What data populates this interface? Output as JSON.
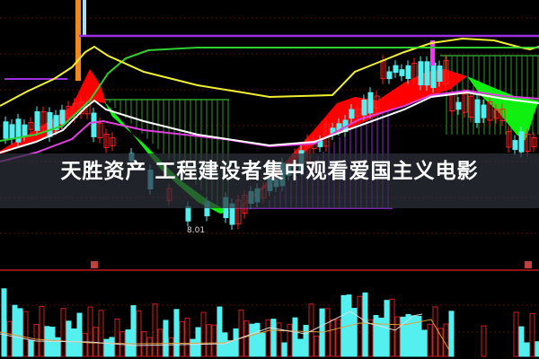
{
  "caption": "天胜资产 工程建设者集中观看爱国主义电影",
  "chart_data": {
    "type": "candlestick",
    "annotations": {
      "low_price_label": "8.01"
    },
    "panes": [
      "price",
      "volume"
    ],
    "grid": true,
    "colors": {
      "up": "#ff2020",
      "down": "#54f0f0",
      "ma_yellow": "#f0f030",
      "ma_green": "#30d030",
      "ma_white": "#ffffff",
      "ma_magenta": "#e040e0",
      "level_purple": "#9a30e0",
      "ribbon_up": "#ff0000",
      "ribbon_down": "#10f010",
      "grid": "#5a0d0d"
    }
  }
}
